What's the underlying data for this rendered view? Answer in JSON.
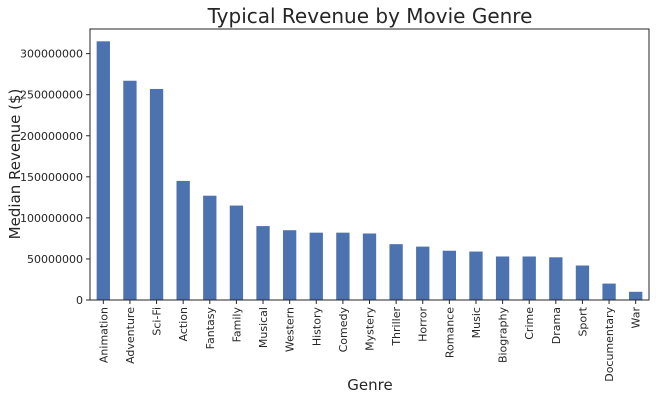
{
  "chart_data": {
    "type": "bar",
    "title": "Typical Revenue by Movie Genre",
    "xlabel": "Genre",
    "ylabel": "Median Revenue ($)",
    "categories": [
      "Animation",
      "Adventure",
      "Sci-Fi",
      "Action",
      "Fantasy",
      "Family",
      "Musical",
      "Western",
      "History",
      "Comedy",
      "Mystery",
      "Thriller",
      "Horror",
      "Romance",
      "Music",
      "Biography",
      "Crime",
      "Drama",
      "Sport",
      "Documentary",
      "War"
    ],
    "values": [
      315000000,
      267000000,
      257000000,
      145000000,
      127000000,
      115000000,
      90000000,
      85000000,
      82000000,
      82000000,
      81000000,
      68000000,
      65000000,
      60000000,
      59000000,
      53000000,
      53000000,
      52000000,
      42000000,
      20000000,
      10000000
    ],
    "yticks": [
      0,
      50000000,
      100000000,
      150000000,
      200000000,
      250000000,
      300000000
    ],
    "ytick_labels": [
      "0",
      "50000000",
      "100000000",
      "150000000",
      "200000000",
      "250000000",
      "300000000"
    ],
    "ylim": [
      0,
      330000000
    ],
    "grid": false,
    "bar_color": "#4c72b0"
  }
}
